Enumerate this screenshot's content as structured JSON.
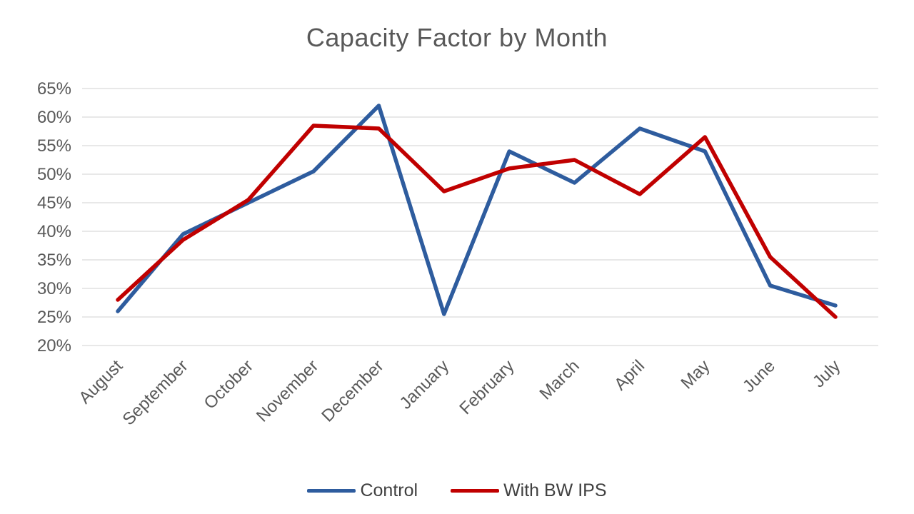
{
  "title": "Capacity Factor by Month",
  "chart_data": {
    "type": "line",
    "title": "Capacity Factor by Month",
    "categories": [
      "August",
      "September",
      "October",
      "November",
      "December",
      "January",
      "February",
      "March",
      "April",
      "May",
      "June",
      "July"
    ],
    "series": [
      {
        "name": "Control",
        "color": "#2e5c9e",
        "values": [
          26,
          39.5,
          45,
          50.5,
          62,
          25.5,
          54,
          48.5,
          58,
          54,
          30.5,
          27
        ]
      },
      {
        "name": "With BW IPS",
        "color": "#c00000",
        "values": [
          28,
          38.5,
          45.5,
          58.5,
          58,
          47,
          51,
          52.5,
          46.5,
          56.5,
          35.5,
          25
        ]
      }
    ],
    "ylim": [
      20,
      65
    ],
    "y_tick_step": 5,
    "y_tick_suffix": "%",
    "grid": true,
    "legend_position": "bottom",
    "text_color": "#595959",
    "grid_color": "#d9d9d9",
    "background": "#ffffff"
  }
}
